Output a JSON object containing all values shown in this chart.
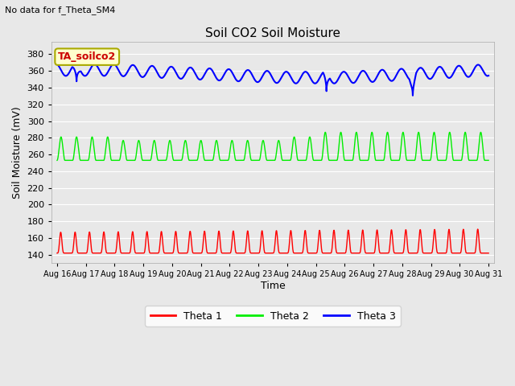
{
  "title": "Soil CO2 Soil Moisture",
  "subtitle": "No data for f_Theta_SM4",
  "ylabel": "Soil Moisture (mV)",
  "xlabel": "Time",
  "annotation": "TA_soilco2",
  "ylim": [
    130,
    395
  ],
  "yticks": [
    140,
    160,
    180,
    200,
    220,
    240,
    260,
    280,
    300,
    320,
    340,
    360,
    380
  ],
  "x_tick_labels": [
    "Aug 16",
    "Aug 17",
    "Aug 18",
    "Aug 19",
    "Aug 20",
    "Aug 21",
    "Aug 22",
    "Aug 23",
    "Aug 24",
    "Aug 25",
    "Aug 26",
    "Aug 27",
    "Aug 28",
    "Aug 29",
    "Aug 30",
    "Aug 31"
  ],
  "theta1_color": "#ff0000",
  "theta2_color": "#00ee00",
  "theta3_color": "#0000ff",
  "legend_labels": [
    "Theta 1",
    "Theta 2",
    "Theta 3"
  ],
  "plot_bg_color": "#e8e8e8",
  "fig_bg_color": "#e8e8e8",
  "grid_color": "#ffffff",
  "n_points": 2000,
  "days": 15
}
